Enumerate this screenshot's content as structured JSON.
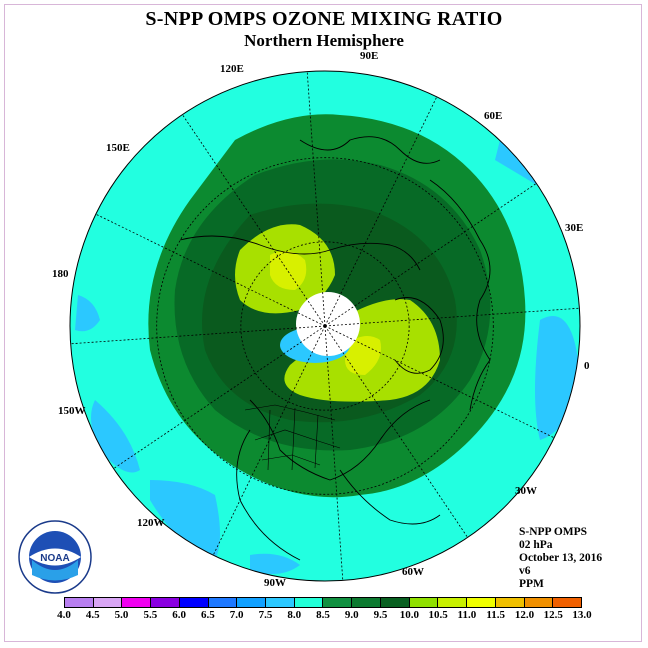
{
  "title": "S-NPP OMPS OZONE MIXING RATIO",
  "subtitle": "Northern Hemisphere",
  "longitude_labels": [
    {
      "id": "lon-90e",
      "text": "90E"
    },
    {
      "id": "lon-120e",
      "text": "120E"
    },
    {
      "id": "lon-60e",
      "text": "60E"
    },
    {
      "id": "lon-150e",
      "text": "150E"
    },
    {
      "id": "lon-30e",
      "text": "30E"
    },
    {
      "id": "lon-180",
      "text": "180"
    },
    {
      "id": "lon-0",
      "text": "0"
    },
    {
      "id": "lon-150w",
      "text": "150W"
    },
    {
      "id": "lon-30w",
      "text": "30W"
    },
    {
      "id": "lon-120w",
      "text": "120W"
    },
    {
      "id": "lon-60w",
      "text": "60W"
    },
    {
      "id": "lon-90w",
      "text": "90W"
    }
  ],
  "info": {
    "instrument": "S-NPP OMPS",
    "level": "02 hPa",
    "date": "October 13, 2016",
    "version": "v6",
    "units": "PPM"
  },
  "logo_text": "NOAA",
  "colorbar": {
    "colors": [
      "#b87ff0",
      "#d9a6f5",
      "#f000f0",
      "#8a00e0",
      "#0000ff",
      "#1e78ff",
      "#10a0ff",
      "#2bc8ff",
      "#22ffd8",
      "#109040",
      "#0c7a30",
      "#086020",
      "#90e000",
      "#c8f000",
      "#f0ff00",
      "#f0c000",
      "#f09000",
      "#f06000",
      "#f00000",
      "#c00000",
      "#8a4a2a"
    ],
    "ticks": [
      "4.0",
      "4.5",
      "5.0",
      "5.5",
      "6.0",
      "6.5",
      "7.0",
      "7.5",
      "8.0",
      "8.5",
      "9.0",
      "9.5",
      "10.0",
      "10.5",
      "11.0",
      "11.5",
      "12.0",
      "12.5",
      "13.0"
    ]
  },
  "map_colors": {
    "background_field": "#22ffe0",
    "low_patch": "#2bc8ff",
    "field_8_0": "#0c8a30",
    "field_8_5": "#076a26",
    "field_9_0": "#0a5a1e",
    "field_9_5": "#a8e000",
    "field_10_0": "#d8f000",
    "polar_night": "#ffffff"
  }
}
